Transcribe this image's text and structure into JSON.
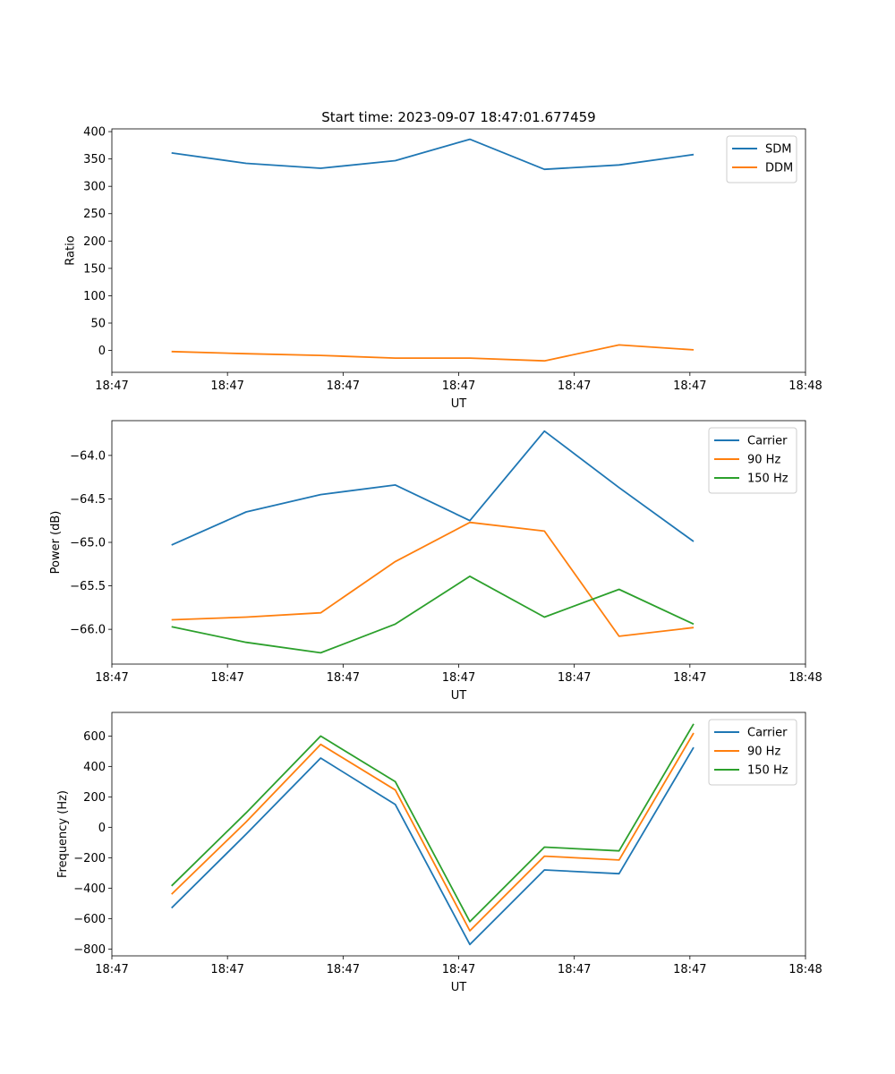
{
  "chart_data": [
    {
      "type": "line",
      "title": "Start time: 2023-09-07 18:47:01.677459",
      "xlabel": "UT",
      "ylabel": "Ratio",
      "x": [
        1,
        2,
        3,
        4,
        5,
        6,
        7,
        8
      ],
      "xlim": [
        0.2,
        9.5
      ],
      "ylim": [
        -40,
        405
      ],
      "x_ticks": [
        0.2,
        1.75,
        3.3,
        4.85,
        6.4,
        7.95,
        9.5
      ],
      "x_tick_labels": [
        "18:47",
        "18:47",
        "18:47",
        "18:47",
        "18:47",
        "18:47",
        "18:48"
      ],
      "y_ticks": [
        0,
        50,
        100,
        150,
        200,
        250,
        300,
        350,
        400
      ],
      "y_tick_labels": [
        "0",
        "50",
        "100",
        "150",
        "200",
        "250",
        "300",
        "350",
        "400"
      ],
      "legend_position": "top-right",
      "series": [
        {
          "name": "SDM",
          "color": "#1f77b4",
          "values": [
            361,
            342,
            333,
            347,
            386,
            331,
            339,
            358
          ]
        },
        {
          "name": "DDM",
          "color": "#ff7f0e",
          "values": [
            -2,
            -6,
            -9,
            -14,
            -14,
            -19,
            10,
            1
          ]
        }
      ]
    },
    {
      "type": "line",
      "title": "",
      "xlabel": "UT",
      "ylabel": "Power (dB)",
      "x": [
        1,
        2,
        3,
        4,
        5,
        6,
        7,
        8
      ],
      "xlim": [
        0.2,
        9.5
      ],
      "ylim": [
        -66.4,
        -63.6
      ],
      "x_ticks": [
        0.2,
        1.75,
        3.3,
        4.85,
        6.4,
        7.95,
        9.5
      ],
      "x_tick_labels": [
        "18:47",
        "18:47",
        "18:47",
        "18:47",
        "18:47",
        "18:47",
        "18:48"
      ],
      "y_ticks": [
        -66.0,
        -65.5,
        -65.0,
        -64.5,
        -64.0
      ],
      "y_tick_labels": [
        "−66.0",
        "−65.5",
        "−65.0",
        "−64.5",
        "−64.0"
      ],
      "legend_position": "top-right",
      "series": [
        {
          "name": "Carrier",
          "color": "#1f77b4",
          "values": [
            -65.03,
            -64.65,
            -64.45,
            -64.34,
            -64.75,
            -63.72,
            -64.37,
            -64.99
          ]
        },
        {
          "name": "90 Hz",
          "color": "#ff7f0e",
          "values": [
            -65.89,
            -65.86,
            -65.81,
            -65.22,
            -64.77,
            -64.87,
            -66.08,
            -65.98
          ]
        },
        {
          "name": "150 Hz",
          "color": "#2ca02c",
          "values": [
            -65.97,
            -66.15,
            -66.27,
            -65.94,
            -65.39,
            -65.86,
            -65.54,
            -65.94
          ]
        }
      ]
    },
    {
      "type": "line",
      "title": "",
      "xlabel": "UT",
      "ylabel": "Frequency (Hz)",
      "x": [
        1,
        2,
        3,
        4,
        5,
        6,
        7,
        8
      ],
      "xlim": [
        0.2,
        9.5
      ],
      "ylim": [
        -845,
        755
      ],
      "x_ticks": [
        0.2,
        1.75,
        3.3,
        4.85,
        6.4,
        7.95,
        9.5
      ],
      "x_tick_labels": [
        "18:47",
        "18:47",
        "18:47",
        "18:47",
        "18:47",
        "18:47",
        "18:48"
      ],
      "y_ticks": [
        -800,
        -600,
        -400,
        -200,
        0,
        200,
        400,
        600
      ],
      "y_tick_labels": [
        "−800",
        "−600",
        "−400",
        "−200",
        "0",
        "200",
        "400",
        "600"
      ],
      "legend_position": "top-right",
      "series": [
        {
          "name": "Carrier",
          "color": "#1f77b4",
          "values": [
            -530,
            -45,
            455,
            150,
            -770,
            -280,
            -305,
            525
          ]
        },
        {
          "name": "90 Hz",
          "color": "#ff7f0e",
          "values": [
            -440,
            35,
            545,
            245,
            -680,
            -190,
            -215,
            620
          ]
        },
        {
          "name": "150 Hz",
          "color": "#2ca02c",
          "values": [
            -385,
            95,
            600,
            300,
            -620,
            -130,
            -155,
            680
          ]
        }
      ]
    }
  ]
}
